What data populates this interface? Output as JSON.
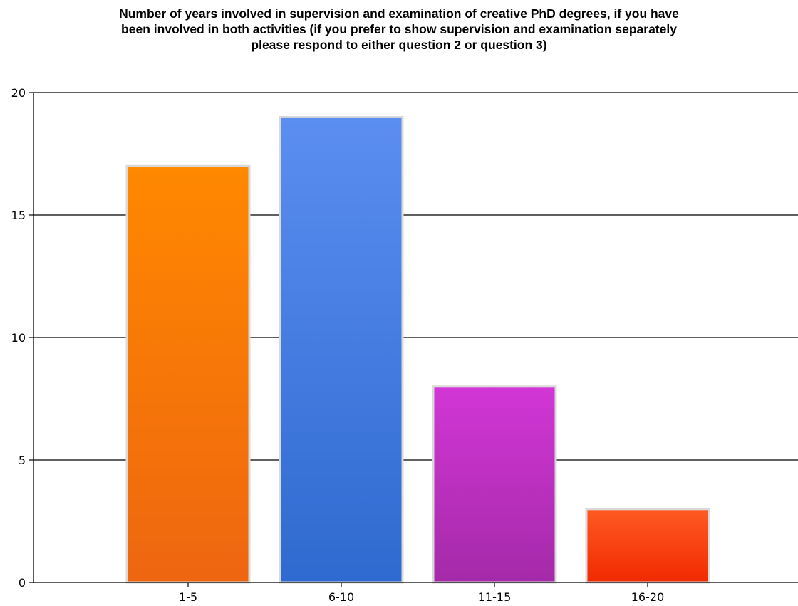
{
  "chart_data": {
    "type": "bar",
    "title": "Number of years involved in supervision and examination of creative PhD degrees, if you have\nbeen involved in both activities (if you prefer to show supervision and examination separately\nplease respond to either question 2 or question 3)",
    "xlabel": "",
    "ylabel": "",
    "categories": [
      "1-5",
      "6-10",
      "11-15",
      "16-20"
    ],
    "values": [
      17,
      19,
      8,
      3
    ],
    "ylim": [
      0,
      20
    ],
    "yticks": [
      0,
      5,
      10,
      15,
      20
    ],
    "grid": true,
    "legend": "none",
    "colors": [
      {
        "top": "#ff8800",
        "bottom": "#ee6610"
      },
      {
        "top": "#5b8ef0",
        "bottom": "#2f6ad0"
      },
      {
        "top": "#d236d6",
        "bottom": "#a42aa8"
      },
      {
        "top": "#ff5a22",
        "bottom": "#f02a00"
      }
    ]
  }
}
